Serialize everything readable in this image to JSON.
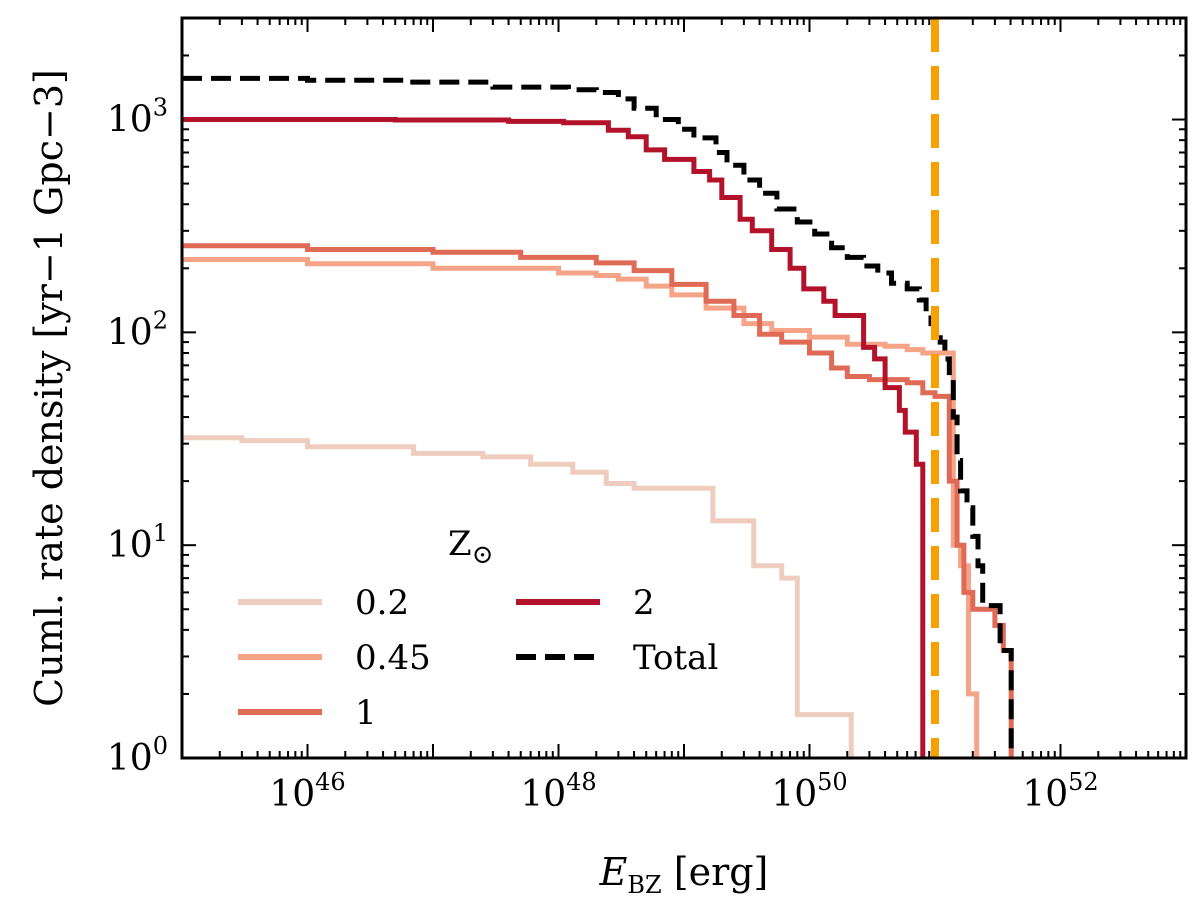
{
  "chart_data": {
    "type": "line",
    "step": true,
    "xscale": "log",
    "yscale": "log",
    "xlim": [
      1e+45,
      1e+53
    ],
    "ylim": [
      1,
      3000
    ],
    "xlabel": "E",
    "xlabel_sub": "BZ",
    "xlabel_unit": "[erg]",
    "ylabel": "Cuml. rate density [yr−1 Gpc−3]",
    "xticks": [
      {
        "value": 1e+46,
        "base": "10",
        "exp": "46"
      },
      {
        "value": 1e+48,
        "base": "10",
        "exp": "48"
      },
      {
        "value": 1e+50,
        "base": "10",
        "exp": "50"
      },
      {
        "value": 1e+52,
        "base": "10",
        "exp": "52"
      }
    ],
    "yticks": [
      {
        "value": 1,
        "base": "10",
        "exp": "0"
      },
      {
        "value": 10,
        "base": "10",
        "exp": "1"
      },
      {
        "value": 100,
        "base": "10",
        "exp": "2"
      },
      {
        "value": 1000,
        "base": "10",
        "exp": "3"
      }
    ],
    "legend_title": "Z",
    "legend_title_symbol": "⊙",
    "legend_location": "lower-left",
    "vline": {
      "x": 1e+51,
      "color": "#F5A100",
      "style": "dashed"
    },
    "series": [
      {
        "name": "0.2",
        "color": "#EFCDBE",
        "style": "solid",
        "points": [
          [
            1e+45,
            32
          ],
          [
            3e+45,
            31
          ],
          [
            1e+46,
            29
          ],
          [
            7e+46,
            27
          ],
          [
            2.5e+47,
            26
          ],
          [
            6e+47,
            24
          ],
          [
            1.3e+48,
            22
          ],
          [
            2.4e+48,
            19.5
          ],
          [
            4e+48,
            18.5
          ],
          [
            1.2e+49,
            18.5
          ],
          [
            1.7e+49,
            13
          ],
          [
            2.2e+49,
            13
          ],
          [
            2.9e+49,
            13
          ],
          [
            3.6e+49,
            8
          ],
          [
            6e+49,
            7
          ],
          [
            8e+49,
            1.6
          ],
          [
            9e+49,
            1.6
          ],
          [
            1.5e+50,
            1.6
          ],
          [
            2.1e+50,
            1.6
          ],
          [
            2.15e+50,
            0.5
          ]
        ]
      },
      {
        "name": "0.45",
        "color": "#F5A488",
        "style": "solid",
        "points": [
          [
            1e+45,
            220
          ],
          [
            1e+46,
            210
          ],
          [
            1e+47,
            200
          ],
          [
            1e+48,
            190
          ],
          [
            2e+48,
            185
          ],
          [
            3e+48,
            178
          ],
          [
            5e+48,
            165
          ],
          [
            8e+48,
            150
          ],
          [
            1.5e+49,
            130
          ],
          [
            3e+49,
            110
          ],
          [
            5e+49,
            102
          ],
          [
            1e+50,
            95
          ],
          [
            2e+50,
            88
          ],
          [
            4e+50,
            86
          ],
          [
            6e+50,
            83
          ],
          [
            8e+50,
            80
          ],
          [
            1.2e+51,
            80
          ],
          [
            1.4e+51,
            10
          ],
          [
            1.6e+51,
            8
          ],
          [
            1.8e+51,
            8
          ],
          [
            1.85e+51,
            2
          ],
          [
            2.1e+51,
            2
          ],
          [
            2.15e+51,
            0.5
          ]
        ]
      },
      {
        "name": "1",
        "color": "#DF6A55",
        "style": "solid",
        "points": [
          [
            1e+45,
            255
          ],
          [
            1e+46,
            245
          ],
          [
            1e+47,
            238
          ],
          [
            5e+47,
            225
          ],
          [
            2e+48,
            212
          ],
          [
            4e+48,
            195
          ],
          [
            8e+48,
            168
          ],
          [
            1.5e+49,
            140
          ],
          [
            2.5e+49,
            120
          ],
          [
            4e+49,
            98
          ],
          [
            6e+49,
            90
          ],
          [
            1e+50,
            80
          ],
          [
            1.5e+50,
            68
          ],
          [
            2e+50,
            62
          ],
          [
            3e+50,
            60
          ],
          [
            6e+50,
            58
          ],
          [
            8e+50,
            52
          ],
          [
            1e+51,
            50
          ],
          [
            1.3e+51,
            20
          ],
          [
            1.5e+51,
            10
          ],
          [
            1.7e+51,
            6
          ],
          [
            2e+51,
            5
          ],
          [
            2.5e+51,
            5
          ],
          [
            3e+51,
            4.2
          ],
          [
            3.5e+51,
            3.2
          ],
          [
            4e+51,
            3.2
          ],
          [
            4.05e+51,
            0.5
          ]
        ]
      },
      {
        "name": "2",
        "color": "#B2132A",
        "style": "solid",
        "points": [
          [
            1e+45,
            1000
          ],
          [
            3e+45,
            1000
          ],
          [
            1e+46,
            1000
          ],
          [
            5e+46,
            995
          ],
          [
            4e+47,
            980
          ],
          [
            1.1e+48,
            965
          ],
          [
            2.5e+48,
            890
          ],
          [
            3.6e+48,
            830
          ],
          [
            5e+48,
            720
          ],
          [
            7e+48,
            650
          ],
          [
            1.2e+49,
            570
          ],
          [
            1.6e+49,
            520
          ],
          [
            2e+49,
            430
          ],
          [
            2.8e+49,
            340
          ],
          [
            3.5e+49,
            300
          ],
          [
            5e+49,
            245
          ],
          [
            7e+49,
            200
          ],
          [
            9e+49,
            160
          ],
          [
            1.3e+50,
            140
          ],
          [
            1.6e+50,
            120
          ],
          [
            2.1e+50,
            120
          ],
          [
            2.7e+50,
            85
          ],
          [
            3.3e+50,
            75
          ],
          [
            4e+50,
            55
          ],
          [
            5.2e+50,
            43
          ],
          [
            5.8e+50,
            34
          ],
          [
            7.1e+50,
            24
          ],
          [
            7.8e+50,
            24
          ],
          [
            8e+50,
            0.5
          ]
        ]
      },
      {
        "name": "Total",
        "color": "#000000",
        "style": "dashed",
        "points": [
          [
            1e+45,
            1560
          ],
          [
            1e+46,
            1530
          ],
          [
            6e+46,
            1500
          ],
          [
            3e+47,
            1420
          ],
          [
            1.2e+48,
            1380
          ],
          [
            2e+48,
            1340
          ],
          [
            3e+48,
            1250
          ],
          [
            4e+48,
            1130
          ],
          [
            6e+48,
            1000
          ],
          [
            9e+48,
            900
          ],
          [
            1.2e+49,
            820
          ],
          [
            1.8e+49,
            700
          ],
          [
            2.2e+49,
            610
          ],
          [
            3e+49,
            520
          ],
          [
            4e+49,
            450
          ],
          [
            5.5e+49,
            380
          ],
          [
            8e+49,
            330
          ],
          [
            1.1e+50,
            290
          ],
          [
            1.5e+50,
            250
          ],
          [
            2e+50,
            225
          ],
          [
            2.7e+50,
            205
          ],
          [
            3.5e+50,
            190
          ],
          [
            4.5e+50,
            170
          ],
          [
            6e+50,
            160
          ],
          [
            7.5e+50,
            142
          ],
          [
            8.5e+50,
            120
          ],
          [
            9.3e+50,
            110
          ],
          [
            1e+51,
            100
          ],
          [
            1.1e+51,
            90
          ],
          [
            1.2e+51,
            75
          ],
          [
            1.3e+51,
            60
          ],
          [
            1.4e+51,
            40
          ],
          [
            1.5e+51,
            25
          ],
          [
            1.6e+51,
            18
          ],
          [
            1.8e+51,
            15
          ],
          [
            2e+51,
            11
          ],
          [
            2.2e+51,
            8
          ],
          [
            2.4e+51,
            5.2
          ],
          [
            3e+51,
            5.2
          ],
          [
            3.3e+51,
            3.2
          ],
          [
            4e+51,
            3.2
          ],
          [
            4.05e+51,
            0.5
          ]
        ]
      }
    ]
  }
}
